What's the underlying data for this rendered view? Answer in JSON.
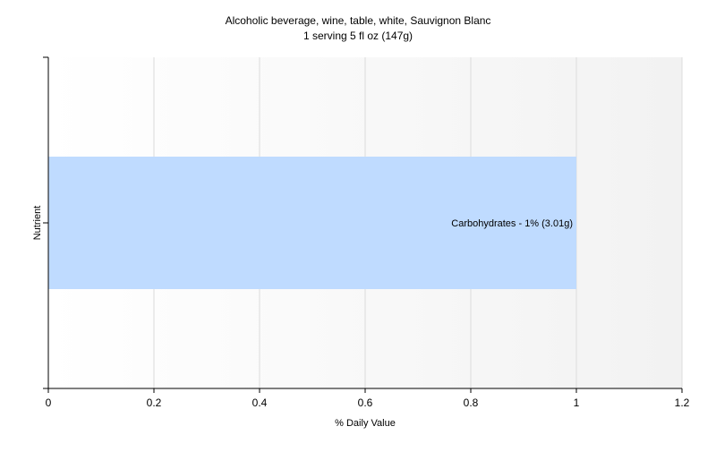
{
  "chart_data": {
    "type": "bar",
    "orientation": "horizontal",
    "title": "Alcoholic beverage, wine, table, white, Sauvignon Blanc",
    "subtitle": "1 serving 5 fl oz (147g)",
    "xlabel": "% Daily Value",
    "ylabel": "Nutrient",
    "xlim": [
      0,
      1.2
    ],
    "xticks": [
      "0",
      "0.2",
      "0.4",
      "0.6",
      "0.8",
      "1",
      "1.2"
    ],
    "grid": true,
    "legend": "none",
    "bar_color": "#bfdbff",
    "categories": [
      "Carbohydrates"
    ],
    "values": [
      1
    ],
    "data_labels": [
      "Carbohydrates - 1% (3.01g)"
    ]
  }
}
